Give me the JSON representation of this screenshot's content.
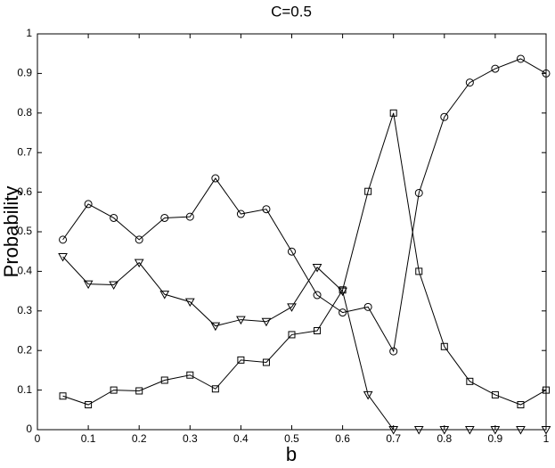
{
  "chart_data": {
    "type": "line",
    "title": "C=0.5",
    "x_label": "b",
    "y_label": "Probability",
    "x": [
      0.05,
      0.1,
      0.15,
      0.2,
      0.25,
      0.3,
      0.35,
      0.4,
      0.45,
      0.5,
      0.55,
      0.6,
      0.65,
      0.7,
      0.75,
      0.8,
      0.85,
      0.9,
      0.95,
      1
    ],
    "series": [
      {
        "marker": "circle",
        "color": "#000000",
        "values": [
          0.48,
          0.57,
          0.535,
          0.48,
          0.535,
          0.538,
          0.635,
          0.545,
          0.557,
          0.45,
          0.34,
          0.296,
          0.31,
          0.198,
          0.598,
          0.79,
          0.877,
          0.912,
          0.937,
          0.9
        ]
      },
      {
        "marker": "square",
        "color": "#000000",
        "values": [
          0.085,
          0.063,
          0.1,
          0.098,
          0.125,
          0.138,
          0.103,
          0.176,
          0.17,
          0.24,
          0.25,
          0.353,
          0.602,
          0.8,
          0.4,
          0.21,
          0.122,
          0.088,
          0.063,
          0.1
        ]
      },
      {
        "marker": "triangle-down",
        "color": "#000000",
        "values": [
          0.437,
          0.368,
          0.366,
          0.422,
          0.342,
          0.323,
          0.262,
          0.278,
          0.273,
          0.31,
          0.41,
          0.35,
          0.088,
          0,
          0,
          0,
          0,
          0,
          0,
          0
        ]
      }
    ],
    "xlim": [
      0,
      1
    ],
    "xticks": [
      0,
      0.1,
      0.2,
      0.3,
      0.4,
      0.5,
      0.6,
      0.7,
      0.8,
      0.9,
      1
    ],
    "ylim": [
      0,
      1
    ],
    "yticks": [
      0,
      0.1,
      0.2,
      0.3,
      0.4,
      0.5,
      0.6,
      0.7,
      0.8,
      0.9,
      1
    ]
  }
}
